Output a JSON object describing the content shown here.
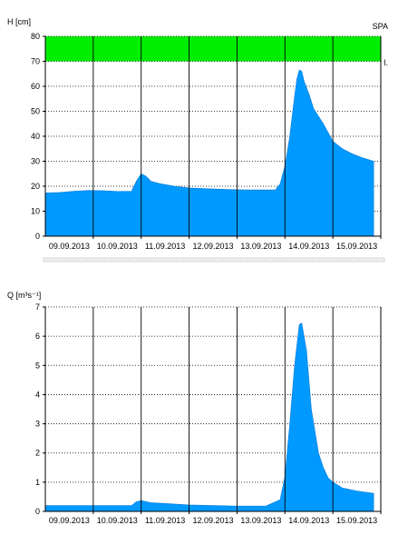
{
  "colors": {
    "fill": "#0099ff",
    "band": "#00ee00",
    "axis": "#000000",
    "grid": "#000000",
    "background": "#ffffff"
  },
  "chart_data": [
    {
      "type": "area",
      "ylabel": "H [cm]",
      "station": "SPA",
      "band_label": "I.",
      "ylim": [
        0,
        80
      ],
      "yticks": [
        "0",
        "10",
        "20",
        "30",
        "40",
        "50",
        "60",
        "70",
        "80"
      ],
      "alert_band": [
        70,
        80
      ],
      "xticks": [
        "09.09.2013",
        "10.09.2013",
        "11.09.2013",
        "12.09.2013",
        "13.09.2013",
        "14.09.2013",
        "15.09.2013"
      ],
      "xrange_days": [
        0,
        7
      ],
      "grid": "vertical solid at day boundaries, horizontal dotted",
      "series": [
        {
          "x": [
            0,
            0.3,
            0.6,
            0.9,
            1.2,
            1.5,
            1.8,
            1.9,
            2.0,
            2.1,
            2.2,
            2.4,
            2.7,
            3.0,
            3.4,
            3.8,
            4.2,
            4.8,
            4.9,
            5.0,
            5.1,
            5.2,
            5.25,
            5.3,
            5.35,
            5.4,
            5.5,
            5.6,
            5.8,
            6.0,
            6.2,
            6.4,
            6.6,
            6.85
          ],
          "values": [
            17.3,
            17.5,
            18.0,
            18.3,
            18.2,
            17.9,
            18.0,
            22.0,
            25.0,
            24.0,
            22.0,
            21.0,
            20.0,
            19.3,
            19.0,
            18.7,
            18.5,
            18.5,
            21.0,
            28.0,
            40.0,
            56.0,
            63.0,
            66.5,
            66.0,
            62.0,
            57.0,
            51.0,
            45.0,
            38.0,
            35.0,
            33.0,
            31.5,
            30.0
          ]
        }
      ]
    },
    {
      "type": "area",
      "ylabel": "Q [m³s⁻¹]",
      "ylim": [
        0,
        7
      ],
      "yticks": [
        "0",
        "1",
        "2",
        "3",
        "4",
        "5",
        "6",
        "7"
      ],
      "xticks": [
        "09.09.2013",
        "10.09.2013",
        "11.09.2013",
        "12.09.2013",
        "13.09.2013",
        "14.09.2013",
        "15.09.2013"
      ],
      "xrange_days": [
        0,
        7
      ],
      "grid": "vertical solid at day boundaries, horizontal dotted",
      "series": [
        {
          "x": [
            0,
            0.5,
            1.0,
            1.5,
            1.8,
            1.9,
            2.0,
            2.2,
            2.5,
            3.0,
            3.5,
            4.0,
            4.6,
            4.9,
            5.0,
            5.1,
            5.2,
            5.3,
            5.35,
            5.45,
            5.55,
            5.7,
            5.8,
            5.9,
            6.0,
            6.2,
            6.5,
            6.85
          ],
          "values": [
            0.2,
            0.2,
            0.2,
            0.2,
            0.2,
            0.33,
            0.37,
            0.3,
            0.27,
            0.22,
            0.2,
            0.18,
            0.18,
            0.4,
            1.2,
            3.0,
            5.0,
            6.4,
            6.45,
            5.5,
            3.5,
            2.0,
            1.5,
            1.15,
            1.0,
            0.8,
            0.7,
            0.62
          ]
        }
      ]
    }
  ]
}
